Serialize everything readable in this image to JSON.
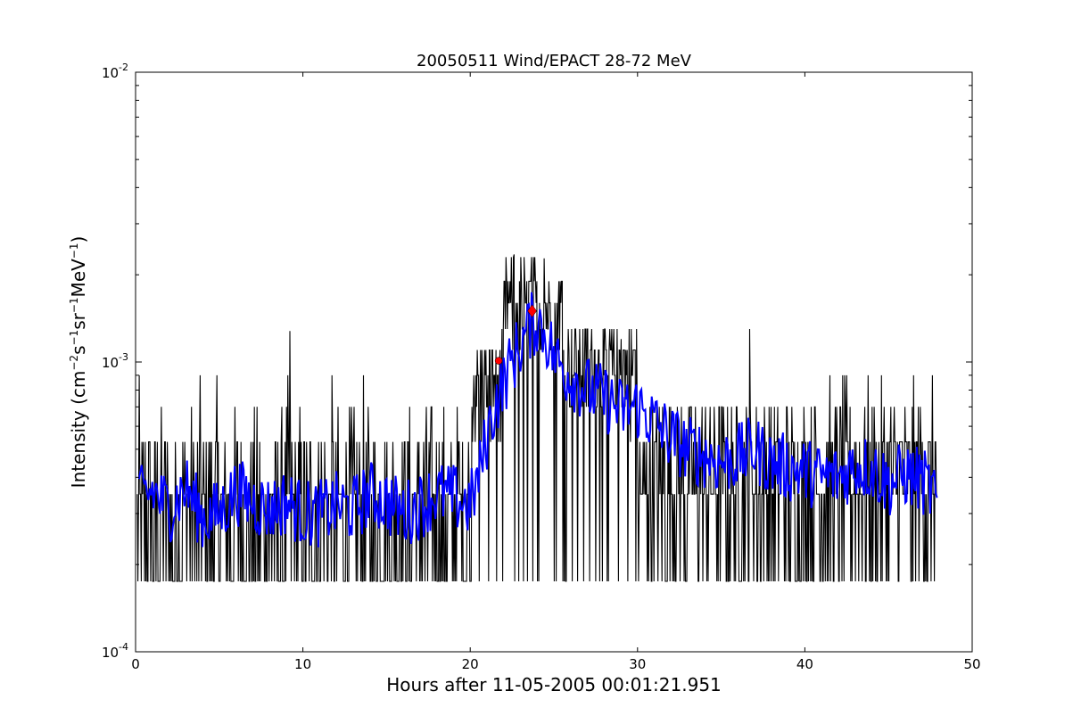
{
  "chart_data": {
    "type": "line",
    "title": "20050511 Wind/EPACT 28-72 MeV",
    "xlabel": "Hours after 11-05-2005 00:01:21.951",
    "ylabel": {
      "prefix": "Intensity (cm",
      "sup1": "−2",
      "mid1": "s",
      "sup2": "−1",
      "mid2": "sr",
      "sup3": "−1",
      "mid3": "MeV",
      "sup4": "−1",
      "suffix": ")"
    },
    "xlim": [
      0,
      50
    ],
    "ylim": [
      0.0001,
      0.01
    ],
    "yscale": "log",
    "x_ticks": [
      0,
      10,
      20,
      30,
      40,
      50
    ],
    "x_tick_labels": [
      "0",
      "10",
      "20",
      "30",
      "40",
      "50"
    ],
    "y_ticks": [
      0.0001,
      0.001,
      0.01
    ],
    "y_tick_labels": [
      {
        "base": "10",
        "exp": "-4"
      },
      {
        "base": "10",
        "exp": "-3"
      },
      {
        "base": "10",
        "exp": "-2"
      }
    ],
    "grid": false,
    "raw_series": {
      "name": "",
      "color": "#000000",
      "x_start": 0.1,
      "x_step": 0.04,
      "x_end": 47.9,
      "levels": [
        0.000175,
        0.00035,
        0.00053,
        0.0007,
        0.0009
      ],
      "enhanced_window": [
        20.0,
        30.0
      ],
      "enhanced_levels": [
        0.00053,
        0.0007,
        0.0009,
        0.0011,
        0.0013,
        0.0016,
        0.0019,
        0.0023
      ],
      "spikes": [
        {
          "x": 9.2,
          "y": 0.00128
        },
        {
          "x": 22.6,
          "y": 0.00235
        },
        {
          "x": 24.4,
          "y": 0.00228
        },
        {
          "x": 36.7,
          "y": 0.0013
        },
        {
          "x": 29.0,
          "y": 0.0012
        }
      ]
    },
    "smoothed_series": {
      "name": "",
      "color": "#0000ff",
      "x": [
        0.2,
        1,
        2,
        3,
        4,
        5,
        6,
        7,
        8,
        9,
        10,
        11,
        12,
        13,
        14,
        15,
        16,
        17,
        18,
        19,
        20,
        20.5,
        21,
        21.5,
        22,
        22.5,
        23,
        23.5,
        24,
        24.5,
        25,
        25.5,
        26,
        27,
        28,
        29,
        30,
        31,
        32,
        33,
        34,
        35,
        36,
        37,
        38,
        39,
        40,
        41,
        42,
        43,
        44,
        45,
        46,
        47,
        47.9
      ],
      "y": [
        0.00033,
        0.00036,
        0.00031,
        0.00037,
        0.00029,
        0.0003,
        0.00036,
        0.00033,
        0.00031,
        0.00033,
        0.0003,
        0.0003,
        0.00032,
        0.00031,
        0.00035,
        0.00033,
        0.0003,
        0.00032,
        0.00035,
        0.00034,
        0.00032,
        0.0004,
        0.00055,
        0.00072,
        0.00085,
        0.001,
        0.00115,
        0.0013,
        0.0014,
        0.00125,
        0.00105,
        0.00095,
        0.0009,
        0.0008,
        0.00075,
        0.00068,
        0.0007,
        0.00062,
        0.00055,
        0.0005,
        0.00048,
        0.00045,
        0.00047,
        0.0005,
        0.00045,
        0.00043,
        0.00042,
        0.0004,
        0.0004,
        0.00044,
        0.00043,
        0.00038,
        0.00041,
        0.00039,
        0.00034
      ]
    },
    "markers": [
      {
        "x": 21.7,
        "y": 0.00101,
        "shape": "circle",
        "color": "#ff0000"
      },
      {
        "x": 23.7,
        "y": 0.0015,
        "shape": "diamond",
        "color": "#ff0000"
      }
    ]
  }
}
